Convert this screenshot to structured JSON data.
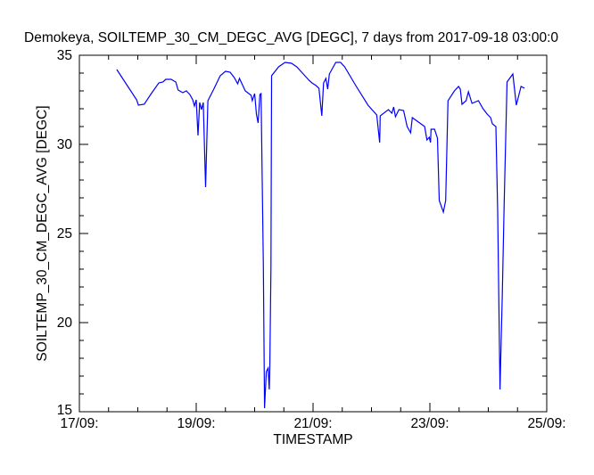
{
  "chart_data": {
    "type": "line",
    "title": "Demokeya, SOILTEMP_30_CM_DEGC_AVG [DEGC], 7 days from  2017-09-18 03:00:0",
    "xlabel": "TIMESTAMP",
    "ylabel": "SOILTEMP_30_CM_DEGC_AVG [DEGC]",
    "x_units": "day of September 2017",
    "xlim": [
      17,
      25
    ],
    "ylim": [
      15,
      35
    ],
    "x_major_step": 2,
    "x_minor_step": 0.5,
    "y_major_step": 5,
    "y_minor_step": 1,
    "x_tick_values": [
      17,
      19,
      21,
      23,
      25
    ],
    "x_tick_labels": [
      "17/09:",
      "19/09:",
      "21/09:",
      "23/09:",
      "25/09:"
    ],
    "y_tick_values": [
      15,
      20,
      25,
      30,
      35
    ],
    "y_tick_labels": [
      "15",
      "20",
      "25",
      "30",
      "35"
    ],
    "grid": false,
    "line_color": "#0000ff",
    "series": [
      {
        "name": "SOILTEMP_30_CM_DEGC_AVG",
        "x": [
          17.64,
          17.98,
          18.01,
          18.11,
          18.23,
          18.36,
          18.43,
          18.48,
          18.57,
          18.65,
          18.69,
          18.77,
          18.83,
          18.89,
          18.94,
          18.97,
          19.0,
          19.03,
          19.06,
          19.09,
          19.12,
          19.16,
          19.2,
          19.3,
          19.41,
          19.5,
          19.58,
          19.65,
          19.71,
          19.74,
          19.84,
          19.94,
          19.96,
          20.0,
          20.03,
          20.06,
          20.09,
          20.11,
          20.15,
          20.17,
          20.2,
          20.23,
          20.25,
          20.26,
          20.28,
          20.29,
          20.41,
          20.52,
          20.63,
          20.72,
          20.93,
          20.98,
          21.05,
          21.1,
          21.15,
          21.18,
          21.22,
          21.25,
          21.28,
          21.39,
          21.47,
          21.54,
          21.74,
          21.94,
          22.09,
          22.14,
          22.15,
          22.29,
          22.35,
          22.38,
          22.41,
          22.47,
          22.55,
          22.61,
          22.67,
          22.7,
          22.91,
          22.95,
          22.99,
          23.01,
          23.02,
          23.08,
          23.13,
          23.16,
          23.23,
          23.27,
          23.31,
          23.42,
          23.49,
          23.52,
          23.55,
          23.62,
          23.66,
          23.72,
          23.83,
          23.91,
          23.98,
          24.04,
          24.07,
          24.13,
          24.16,
          24.2,
          24.24,
          24.27,
          24.32,
          24.42,
          24.48,
          24.56,
          24.62
        ],
        "y": [
          34.2,
          32.5,
          32.2,
          32.25,
          32.85,
          33.45,
          33.5,
          33.65,
          33.65,
          33.5,
          33.05,
          32.9,
          33.0,
          32.8,
          32.5,
          32.15,
          32.5,
          30.5,
          32.35,
          31.95,
          32.35,
          27.6,
          32.45,
          33.1,
          33.85,
          34.1,
          34.05,
          33.75,
          33.4,
          33.7,
          33.0,
          32.75,
          32.45,
          32.85,
          31.7,
          31.2,
          32.8,
          32.85,
          23.1,
          15.2,
          17.25,
          17.45,
          16.25,
          17.45,
          23.1,
          33.85,
          34.35,
          34.6,
          34.55,
          34.35,
          33.6,
          33.45,
          33.3,
          33.15,
          31.6,
          33.45,
          33.7,
          33.1,
          33.95,
          34.6,
          34.6,
          34.35,
          33.25,
          32.2,
          31.65,
          30.1,
          31.6,
          31.95,
          31.75,
          32.1,
          31.55,
          31.95,
          31.9,
          31.0,
          30.65,
          31.5,
          31.0,
          30.25,
          30.4,
          30.1,
          30.85,
          30.85,
          30.35,
          26.85,
          26.2,
          26.85,
          32.45,
          33.0,
          33.25,
          33.1,
          32.25,
          32.45,
          32.95,
          32.3,
          32.45,
          32.0,
          31.7,
          31.5,
          31.15,
          31.0,
          26.25,
          16.25,
          21.6,
          26.5,
          33.5,
          33.95,
          32.2,
          33.25,
          33.15
        ]
      }
    ]
  }
}
